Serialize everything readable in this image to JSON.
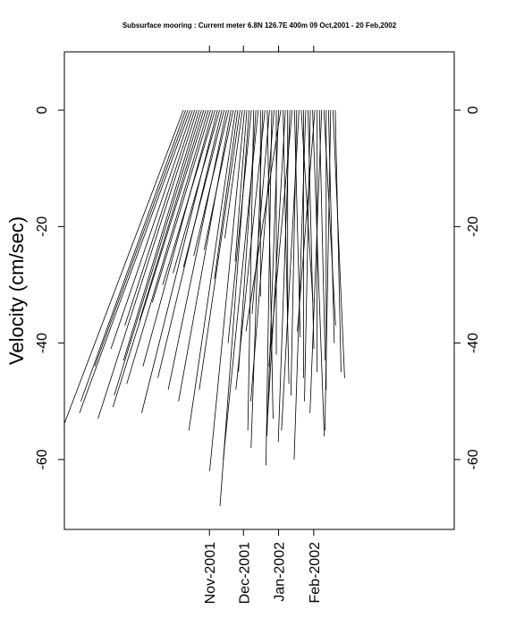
{
  "chart_data": {
    "type": "stick",
    "title": "Subsurface mooring : Current meter 6.8N 126.7E   400m 09 Oct,2001 - 20 Feb,2002",
    "y_label": "Velocity (cm/sec)",
    "x": [
      0,
      2,
      4,
      6,
      8,
      10,
      12,
      14,
      16,
      18,
      20,
      22,
      24,
      26,
      28,
      30,
      32,
      34,
      36,
      38,
      40,
      42,
      44,
      46,
      48,
      50,
      52,
      54,
      56,
      58,
      60,
      62,
      64,
      66,
      68,
      70,
      72,
      74,
      76,
      78,
      80,
      82,
      84,
      86,
      88,
      90,
      92,
      94,
      96,
      98,
      100,
      102,
      104,
      106,
      108,
      110,
      112,
      114,
      116,
      118,
      120,
      122,
      124,
      126,
      128,
      130,
      132,
      134
    ],
    "u": [
      -20.5,
      -18,
      -16,
      -19,
      -14,
      -12,
      -17,
      -13,
      -15,
      -11,
      -16,
      -14,
      -10,
      -12,
      -9,
      -13,
      -8,
      -11,
      -7,
      -10,
      -6,
      -9,
      -5,
      -8,
      -4,
      -7,
      -3,
      -6,
      -2,
      -5,
      -4,
      -1,
      -3,
      -6,
      0,
      -2,
      -5,
      1,
      -3,
      -1,
      -4,
      0,
      -2,
      -6,
      1,
      -3,
      0,
      -2,
      -4,
      1,
      -1,
      -3,
      2,
      0,
      -2,
      1,
      -1,
      2,
      -3,
      0,
      1,
      -2,
      2,
      0,
      1,
      -1,
      2,
      1
    ],
    "v": [
      -54,
      -50,
      -44,
      -52,
      -41,
      -37,
      -53,
      -43,
      -49,
      -36,
      -51,
      -47,
      -33,
      -44,
      -30,
      -52,
      -28,
      -46,
      -27,
      -48,
      -25,
      -50,
      -24,
      -55,
      -29,
      -48,
      -22,
      -62,
      -26,
      -68,
      -40,
      -55,
      -45,
      -60,
      -32,
      -58,
      -48,
      -53,
      -35,
      -61,
      -50,
      -42,
      -56,
      -38,
      -47,
      -52,
      -36,
      -57,
      -44,
      -39,
      -49,
      -55,
      -33,
      -46,
      -60,
      -41,
      -50,
      -56,
      -38,
      -45,
      -43,
      -52,
      -37,
      -48,
      -40,
      -55,
      -46,
      -45
    ],
    "color": "#000000",
    "xlim": [
      -105,
      239
    ],
    "xticks": [
      {
        "value": 23,
        "label": "Nov-2001"
      },
      {
        "value": 53,
        "label": "Dec-2001"
      },
      {
        "value": 84,
        "label": "Jan-2002"
      },
      {
        "value": 115,
        "label": "Feb-2002"
      }
    ],
    "ylim": [
      -72,
      10
    ],
    "yticks": [
      0,
      -20,
      -40,
      -60
    ]
  }
}
